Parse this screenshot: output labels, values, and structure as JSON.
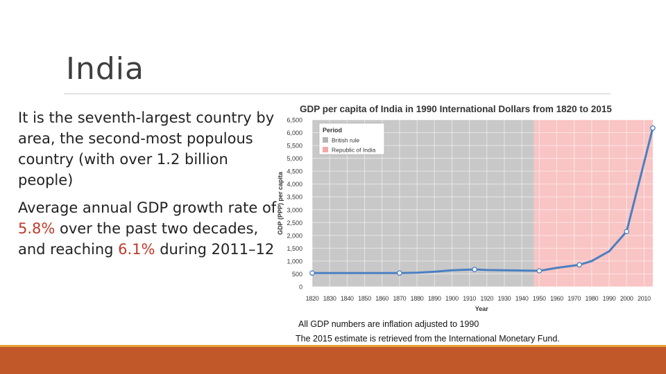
{
  "slide": {
    "title": "India",
    "para1": "It is the seventh-largest country by area, the second-most populous country (with over 1.2 billion people)",
    "para2_a": "Average annual GDP growth rate of ",
    "para2_hl1": "5.8%",
    "para2_b": " over the past two decades, and reaching ",
    "para2_hl2": "6.1%",
    "para2_c": " during 2011–12",
    "note1": "All GDP numbers are inflation adjusted to 1990",
    "note2": "The 2015 estimate is retrieved from the International Monetary Fund."
  },
  "colors": {
    "british_band": "#c8c8c8",
    "republic_band": "#f9c4c4",
    "line": "#4a7fc0",
    "highlight": "#c0392b",
    "footer": "#c0582a"
  },
  "chart_data": {
    "type": "line",
    "title": "GDP per capita of India in 1990 International Dollars from 1820 to 2015",
    "xlabel": "Year",
    "ylabel": "GDP (PPP) per capita",
    "xlim": [
      1820,
      2015
    ],
    "ylim": [
      0,
      6500
    ],
    "x_ticks": [
      1820,
      1830,
      1840,
      1850,
      1860,
      1870,
      1880,
      1890,
      1900,
      1910,
      1920,
      1930,
      1940,
      1950,
      1960,
      1970,
      1980,
      1990,
      2000,
      2010
    ],
    "y_ticks": [
      0,
      500,
      1000,
      1500,
      2000,
      2500,
      3000,
      3500,
      4000,
      4500,
      5000,
      5500,
      6000,
      6500
    ],
    "y_tick_labels": [
      "0",
      "500",
      "1,000",
      "1,500",
      "2,000",
      "2,500",
      "3,000",
      "3,500",
      "4,000",
      "4,500",
      "5,000",
      "5,500",
      "6,000",
      "6,500"
    ],
    "legend": {
      "title": "Period",
      "position": "top-left",
      "entries": [
        {
          "label": "British rule",
          "color": "#b5b5b5"
        },
        {
          "label": "Republic of India",
          "color": "#f4a8a8"
        }
      ]
    },
    "bands": [
      {
        "name": "British rule",
        "from": 1820,
        "to": 1947
      },
      {
        "name": "Republic of India",
        "from": 1947,
        "to": 2015
      }
    ],
    "series": [
      {
        "x": [
          1820,
          1870,
          1880,
          1890,
          1900,
          1913,
          1920,
          1930,
          1940,
          1950,
          1960,
          1973,
          1980,
          1990,
          2000,
          2015
        ],
        "y": [
          533,
          533,
          545,
          585,
          640,
          673,
          650,
          640,
          630,
          619,
          735,
          853,
          1000,
          1380,
          2150,
          6180
        ],
        "markers": [
          1820,
          1870,
          1913,
          1950,
          1973,
          2000,
          2015
        ]
      }
    ]
  }
}
